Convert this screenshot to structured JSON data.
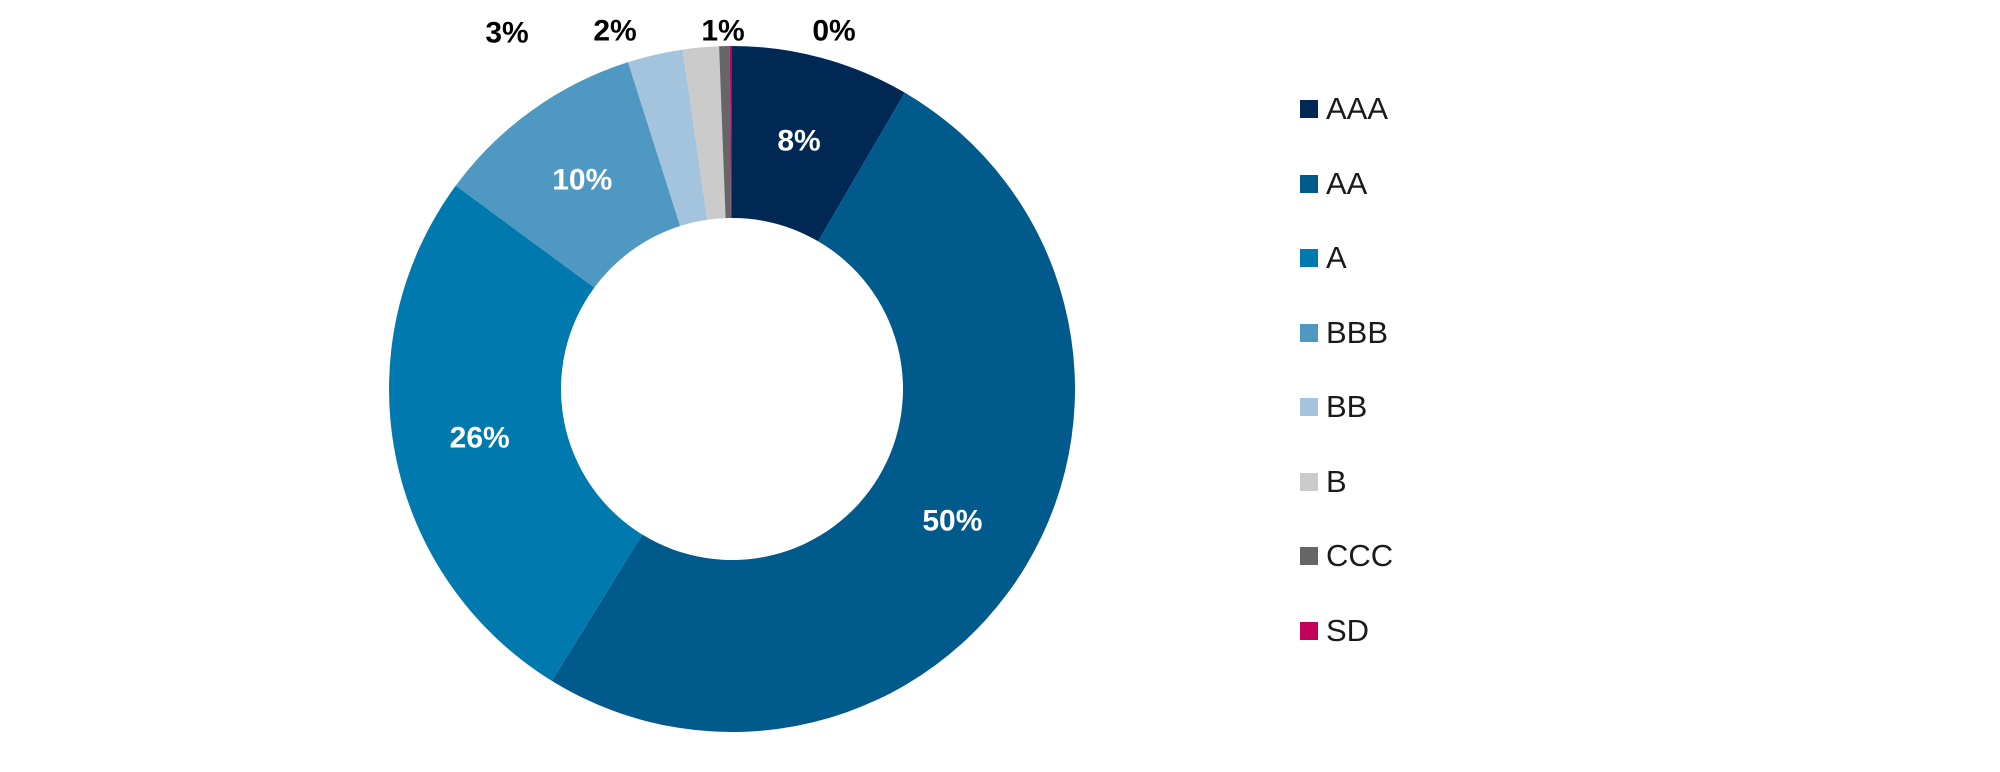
{
  "chart_data": {
    "type": "pie",
    "donut": true,
    "title": "",
    "categories": [
      "AAA",
      "AA",
      "A",
      "BBB",
      "BB",
      "B",
      "CCC",
      "SD"
    ],
    "values": [
      8.4,
      50.4,
      26.3,
      10.0,
      2.6,
      1.7,
      0.5,
      0.1
    ],
    "data_labels": [
      "8%",
      "50%",
      "26%",
      "10%",
      "3%",
      "2%",
      "1%",
      "0%"
    ],
    "colors": [
      "#002855",
      "#005a8c",
      "#007aae",
      "#4f98c2",
      "#a3c4dc",
      "#cbcbcb",
      "#666666",
      "#c4005a"
    ],
    "label_colors": [
      "#ffffff",
      "#ffffff",
      "#ffffff",
      "#ffffff",
      "#000000",
      "#000000",
      "#000000",
      "#000000"
    ],
    "start_angle_deg": 0,
    "direction": "clockwise",
    "legend_position": "right"
  }
}
